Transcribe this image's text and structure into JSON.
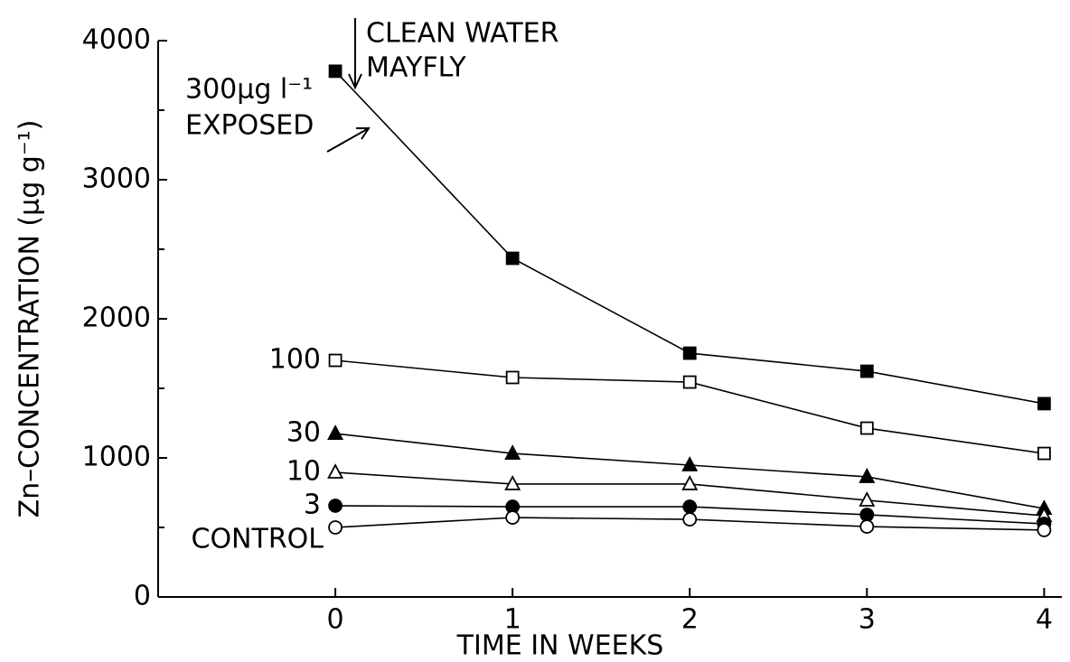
{
  "chart_data": {
    "type": "line",
    "x_label": "TIME  IN  WEEKS",
    "y_label": "Zn–CONCENTRATION (µg g⁻¹)",
    "annotations": [
      "CLEAN WATER",
      "MAYFLY",
      "EXPOSED"
    ],
    "x": [
      0,
      1,
      2,
      3,
      4
    ],
    "xlim": [
      -1,
      4.1
    ],
    "xticks": [
      0,
      1,
      2,
      3,
      4
    ],
    "ylim": [
      0,
      4000
    ],
    "yticks": [
      0,
      1000,
      2000,
      3000,
      4000
    ],
    "yminor": [
      500,
      1500,
      2500,
      3500
    ],
    "series": [
      {
        "name": "300µg l⁻¹",
        "color": "#000",
        "marker": "square",
        "filled": true,
        "values": [
          3780,
          2435,
          1753,
          1623,
          1390
        ]
      },
      {
        "name": "100",
        "color": "#000",
        "marker": "square",
        "filled": false,
        "values": [
          1701,
          1578,
          1545,
          1214,
          1032
        ]
      },
      {
        "name": "30",
        "color": "#000",
        "marker": "triangle",
        "filled": true,
        "values": [
          1175,
          1032,
          948,
          864,
          636
        ]
      },
      {
        "name": "10",
        "color": "#000",
        "marker": "triangle",
        "filled": false,
        "values": [
          896,
          812,
          812,
          695,
          584
        ]
      },
      {
        "name": "3",
        "color": "#000",
        "marker": "circle",
        "filled": true,
        "values": [
          656,
          649,
          649,
          591,
          526
        ]
      },
      {
        "name": "CONTROL",
        "color": "#000",
        "marker": "circle",
        "filled": false,
        "values": [
          500,
          571,
          558,
          506,
          481
        ]
      }
    ]
  }
}
